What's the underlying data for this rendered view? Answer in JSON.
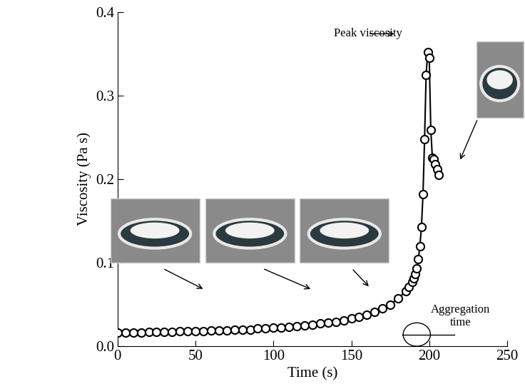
{
  "chart_data": {
    "type": "line",
    "x_label": "Time (s)",
    "y_label": "Viscosity (Pa s)",
    "x": [
      0,
      5,
      10,
      15,
      20,
      25,
      30,
      35,
      40,
      45,
      50,
      55,
      60,
      65,
      70,
      75,
      80,
      85,
      90,
      95,
      100,
      105,
      110,
      115,
      120,
      125,
      130,
      135,
      140,
      145,
      150,
      155,
      160,
      165,
      170,
      175,
      180,
      185,
      187,
      189,
      190,
      191,
      192,
      193,
      194,
      195,
      196,
      197,
      198,
      199,
      200,
      201,
      202,
      203,
      204,
      205,
      206
    ],
    "values": [
      0.016,
      0.016,
      0.016,
      0.016,
      0.017,
      0.017,
      0.017,
      0.017,
      0.018,
      0.018,
      0.018,
      0.018,
      0.019,
      0.019,
      0.019,
      0.02,
      0.02,
      0.02,
      0.021,
      0.021,
      0.022,
      0.022,
      0.023,
      0.024,
      0.025,
      0.026,
      0.027,
      0.028,
      0.029,
      0.031,
      0.033,
      0.035,
      0.038,
      0.041,
      0.045,
      0.05,
      0.057,
      0.066,
      0.071,
      0.077,
      0.081,
      0.086,
      0.093,
      0.104,
      0.12,
      0.143,
      0.182,
      0.248,
      0.325,
      0.352,
      0.345,
      0.259,
      0.226,
      0.224,
      0.218,
      0.212,
      0.205
    ],
    "color": "#000000",
    "marker": "circle",
    "line_style": "solid",
    "xlim": [
      0,
      250
    ],
    "xticks": [
      0,
      50,
      100,
      150,
      200,
      250
    ],
    "ylim": [
      0,
      0.4
    ],
    "yticks": [
      {
        "value": 0,
        "label": "0.0"
      },
      0.1,
      0.2,
      0.3,
      0.4
    ],
    "grid": false,
    "annotations": [
      "Peak viscosity",
      "Aggregation\ntime"
    ]
  }
}
